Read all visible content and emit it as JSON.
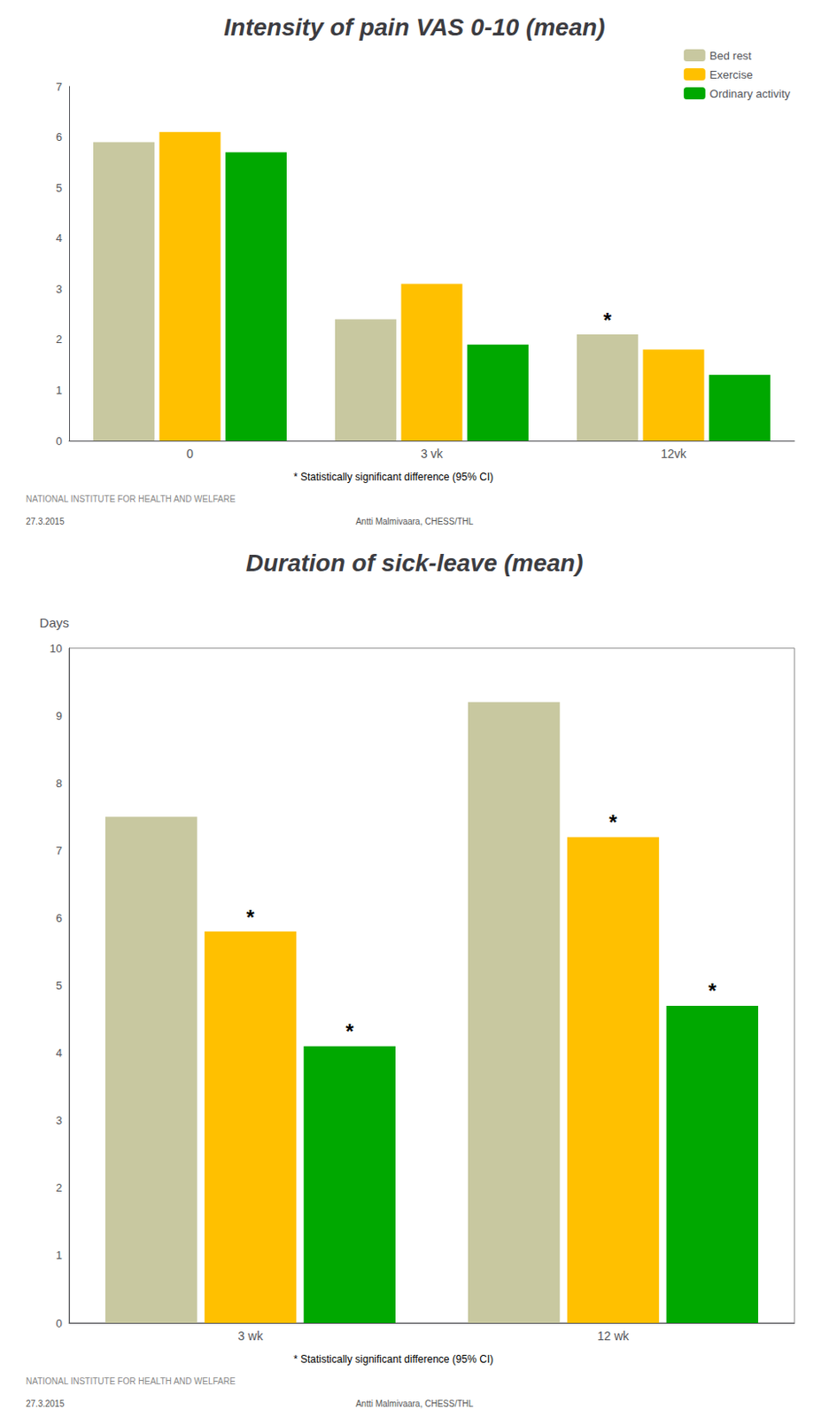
{
  "chart_data": [
    {
      "type": "bar",
      "title": "Intensity of pain VAS 0-10 (mean)",
      "categories": [
        "0",
        "3 vk",
        "12vk"
      ],
      "series": [
        {
          "name": "Bed rest",
          "color": "#C8C8A0",
          "values": [
            5.9,
            2.4,
            2.1
          ]
        },
        {
          "name": "Exercise",
          "color": "#FFC000",
          "values": [
            6.1,
            3.1,
            1.8
          ]
        },
        {
          "name": "Ordinary activity",
          "color": "#00A800",
          "values": [
            5.7,
            1.9,
            1.3
          ]
        }
      ],
      "ylim": [
        0,
        7
      ],
      "yticks": [
        0,
        1,
        2,
        3,
        4,
        5,
        6,
        7
      ],
      "grid": false,
      "legend": "upper right",
      "annotations": [
        {
          "text": "*",
          "category": "12vk",
          "series": "Bed rest"
        }
      ],
      "footer": [
        "* Statistically significant difference (95% CI)",
        "NATIONAL INSTITUTE FOR HEALTH AND WELFARE",
        "27.3.2015",
        "Antti Malmivaara, CHESS/THL"
      ]
    },
    {
      "type": "bar",
      "title": "Duration of sick-leave (mean)",
      "ylabel": "Days",
      "categories": [
        "3 wk",
        "12 wk"
      ],
      "series": [
        {
          "name": "Bed rest",
          "color": "#C8C8A0",
          "values": [
            7.5,
            9.2
          ]
        },
        {
          "name": "Exercise",
          "color": "#FFC000",
          "values": [
            5.8,
            7.2
          ]
        },
        {
          "name": "Ordinary activity",
          "color": "#00A800",
          "values": [
            4.1,
            4.7
          ]
        }
      ],
      "ylim": [
        0,
        10
      ],
      "yticks": [
        0,
        1,
        2,
        3,
        4,
        5,
        6,
        7,
        8,
        9,
        10
      ],
      "grid": false,
      "legend": false,
      "annotations": [
        {
          "text": "*",
          "category": "3 wk",
          "series": "Exercise"
        },
        {
          "text": "*",
          "category": "3 wk",
          "series": "Ordinary activity"
        },
        {
          "text": "*",
          "category": "12 wk",
          "series": "Exercise"
        },
        {
          "text": "*",
          "category": "12 wk",
          "series": "Ordinary activity"
        }
      ],
      "footer": [
        "* Statistically significant difference (95% CI)",
        "NATIONAL INSTITUTE FOR HEALTH AND WELFARE",
        "27.3.2015",
        "Antti Malmivaara, CHESS/THL"
      ]
    }
  ]
}
